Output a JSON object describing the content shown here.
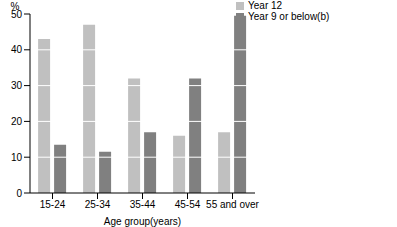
{
  "chart_data": {
    "type": "bar",
    "y_label": "%",
    "x_label": "Age group(years)",
    "categories": [
      "15-24",
      "25-34",
      "35-44",
      "45-54",
      "55 and over"
    ],
    "series": [
      {
        "name": "Year 12",
        "color": "#c0c0c0",
        "values": [
          43,
          47,
          32,
          16,
          17
        ]
      },
      {
        "name": "Year 9 or below(b)",
        "color": "#808080",
        "values": [
          13.5,
          11.5,
          17,
          32,
          49.5
        ]
      }
    ],
    "ylim": [
      0,
      50
    ],
    "yticks": [
      0,
      10,
      20,
      30,
      40,
      50
    ],
    "grid": true,
    "legend": "top"
  }
}
